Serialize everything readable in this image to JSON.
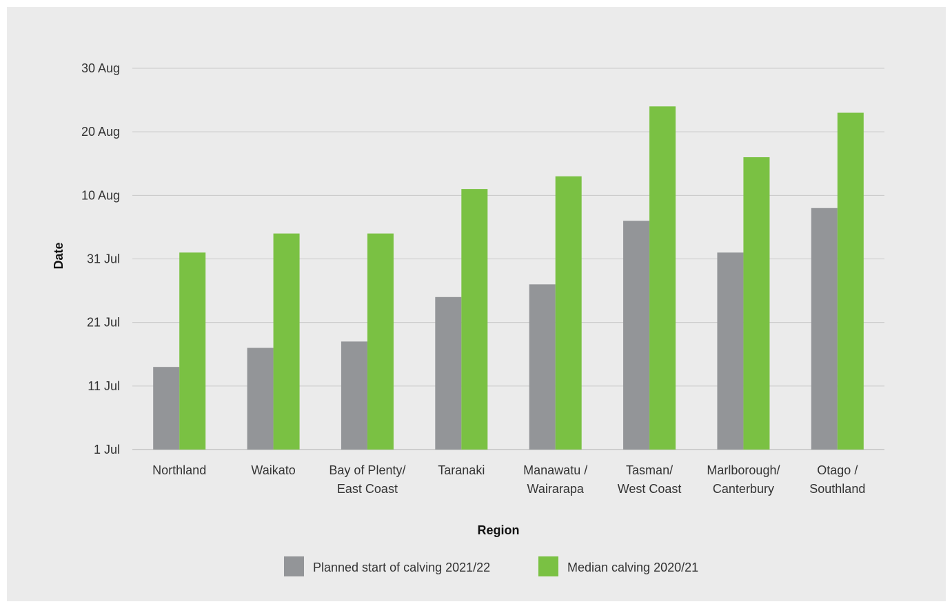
{
  "chart_data": {
    "type": "bar",
    "xlabel": "Region",
    "ylabel": "Date",
    "yticks": [
      "1 Jul",
      "11 Jul",
      "21 Jul",
      "31 Jul",
      "10 Aug",
      "20 Aug",
      "30 Aug"
    ],
    "ylim": [
      "1 Jul",
      "30 Aug"
    ],
    "grid": true,
    "legend_position": "bottom",
    "categories": [
      [
        "Northland"
      ],
      [
        "Waikato"
      ],
      [
        "Bay of Plenty/",
        "East Coast"
      ],
      [
        "Taranaki"
      ],
      [
        "Manawatu /",
        "Wairarapa"
      ],
      [
        "Tasman/",
        "West Coast"
      ],
      [
        "Marlborough/",
        "Canterbury"
      ],
      [
        "Otago /",
        "Southland"
      ]
    ],
    "series": [
      {
        "name": "Planned start of calving 2021/22",
        "color": "#939598",
        "values": [
          "14 Jul",
          "17 Jul",
          "18 Jul",
          "25 Jul",
          "27 Jul",
          "6 Aug",
          "1 Aug",
          "8 Aug"
        ]
      },
      {
        "name": "Median calving 2020/21",
        "color": "#7ac143",
        "values": [
          "1 Aug",
          "4 Aug",
          "4 Aug",
          "11 Aug",
          "13 Aug",
          "24 Aug",
          "16 Aug",
          "23 Aug"
        ]
      }
    ]
  }
}
